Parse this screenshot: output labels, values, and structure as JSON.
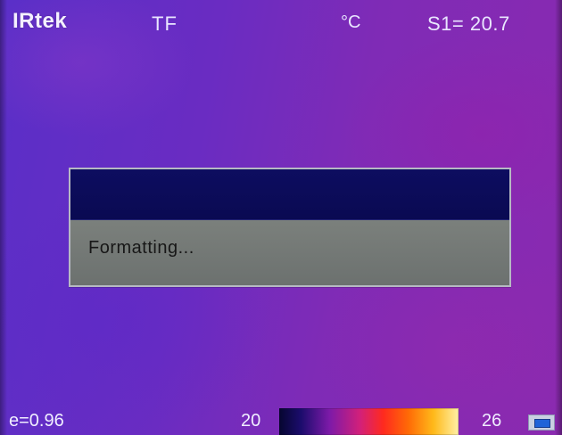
{
  "header": {
    "brand": "IRtek",
    "mode": "TF",
    "unit": "°C",
    "spot_readout": "S1= 20.7"
  },
  "dialog": {
    "title": "",
    "message": "Formatting..."
  },
  "footer": {
    "emissivity": "e=0.96",
    "scale_min": "20",
    "scale_max": "26"
  },
  "colors": {
    "dialog_title_bg": "#0b0b58",
    "dialog_body_bg": "#717673",
    "scale_palette": [
      "#060630",
      "#1b0c6c",
      "#7c1aa8",
      "#d2207a",
      "#ff2a1f",
      "#ff6a06",
      "#ffb91a",
      "#fff0a6"
    ]
  },
  "icons": {
    "status_indicator": "storage-indicator-icon"
  }
}
